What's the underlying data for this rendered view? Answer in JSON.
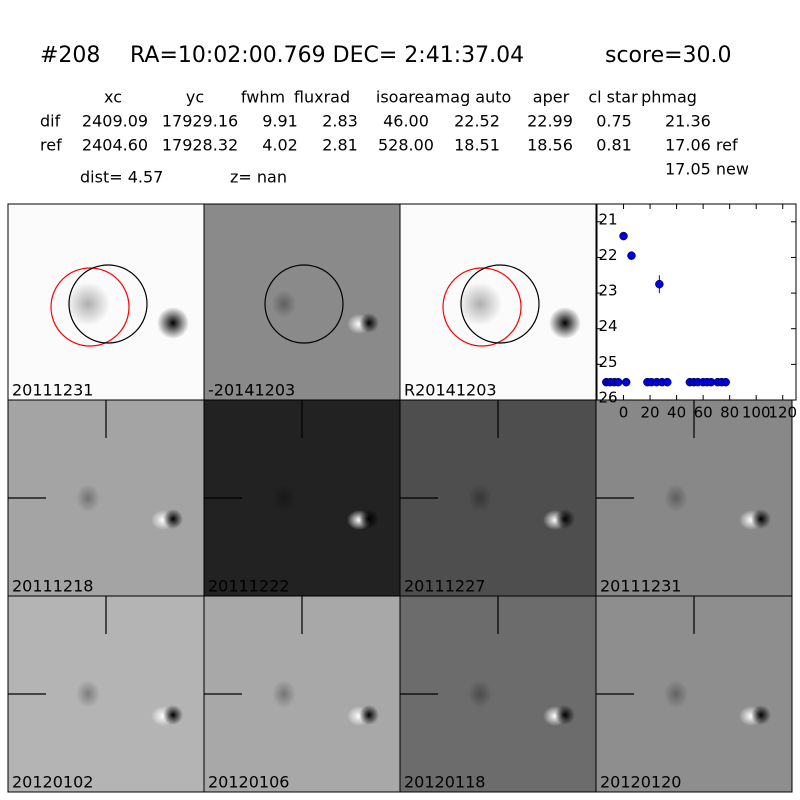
{
  "header": {
    "id": "#208",
    "coords": "RA=10:02:00.769 DEC= 2:41:37.04",
    "score": "score=30.0"
  },
  "table": {
    "columns": [
      "xc",
      "yc",
      "fwhm",
      "fluxrad",
      "isoarea",
      "mag auto",
      "aper",
      "cl star",
      "phmag"
    ],
    "rows": [
      [
        "dif",
        "2409.09",
        "17929.16",
        "9.91",
        "2.83",
        "46.00",
        "22.52",
        "22.99",
        "0.75",
        "21.36"
      ],
      [
        "ref",
        "2404.60",
        "17928.32",
        "4.02",
        "2.81",
        "528.00",
        "18.51",
        "18.56",
        "0.81",
        "17.06 ref"
      ]
    ],
    "extra": "17.05 new"
  },
  "dist": "dist=  4.57",
  "z": "z=   nan",
  "stamps": [
    {
      "label": "20111231",
      "background": "#fbfbfb",
      "circles": true
    },
    {
      "label": "-20141203",
      "background": "#8a8a8a",
      "circles": true
    },
    {
      "label": "R20141203",
      "background": "#fbfbfb",
      "circles": true
    },
    {
      "label": "20111218",
      "background": "#a4a4a4"
    },
    {
      "label": "20111222",
      "background": "#222222"
    },
    {
      "label": "20111227",
      "background": "#4e4e4e"
    },
    {
      "label": "20111231",
      "background": "#888888",
      "label_color": "#ff0000"
    },
    {
      "label": "20120102",
      "background": "#b4b4b4"
    },
    {
      "label": "20120106",
      "background": "#a8a8a8"
    },
    {
      "label": "20120118",
      "background": "#6c6c6c"
    },
    {
      "label": "20120120",
      "background": "#8e8e8e"
    }
  ],
  "chart_data": {
    "type": "scatter",
    "xlim": [
      -20,
      130
    ],
    "xticks": [
      0,
      20,
      40,
      60,
      80,
      100,
      120
    ],
    "ylim": [
      26,
      20.5
    ],
    "yticks": [
      21,
      22,
      23,
      24,
      25,
      26
    ],
    "color": "#0000dd",
    "x": [
      -13,
      -10,
      -7,
      -4,
      2,
      0,
      6,
      18,
      21,
      25,
      27,
      29,
      33,
      50,
      53,
      56,
      60,
      63,
      66,
      71,
      74,
      77
    ],
    "y": [
      25.5,
      25.5,
      25.5,
      25.5,
      25.5,
      21.4,
      21.95,
      25.5,
      25.5,
      25.5,
      22.75,
      25.5,
      25.5,
      25.5,
      25.5,
      25.5,
      25.5,
      25.5,
      25.5,
      25.5,
      25.5,
      25.5
    ],
    "yerr": [
      null,
      null,
      null,
      null,
      null,
      0.05,
      0.07,
      null,
      null,
      null,
      0.25,
      null,
      null,
      null,
      null,
      null,
      null,
      null,
      null,
      null,
      null,
      null
    ]
  }
}
